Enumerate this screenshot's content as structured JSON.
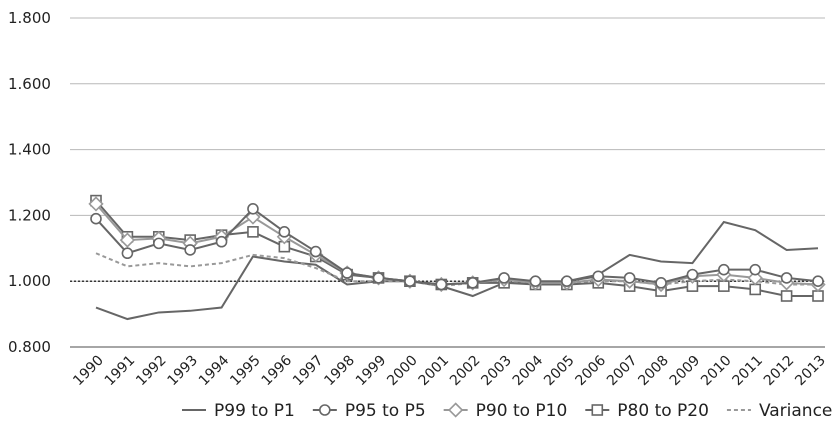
{
  "chart_data": {
    "type": "line",
    "title": "",
    "xlabel": "",
    "ylabel": "",
    "ylim": [
      0.8,
      1.8
    ],
    "yticks": [
      "0.800",
      "1.000",
      "1.200",
      "1.400",
      "1.600",
      "1.800"
    ],
    "grid": "horizontal",
    "reference_line": 1.0,
    "legend_position": "bottom",
    "x": [
      "1990",
      "1991",
      "1992",
      "1993",
      "1994",
      "1995",
      "1996",
      "1997",
      "1998",
      "1999",
      "2000",
      "2001",
      "2002",
      "2003",
      "2004",
      "2005",
      "2006",
      "2007",
      "2008",
      "2009",
      "2010",
      "2011",
      "2012",
      "2013"
    ],
    "series": [
      {
        "name": "P99 to P1",
        "style": "solid",
        "marker": "none",
        "color": "#666666",
        "values": [
          0.92,
          0.885,
          0.905,
          0.91,
          0.92,
          1.075,
          1.06,
          1.05,
          0.99,
          1.0,
          1.0,
          0.985,
          0.955,
          0.995,
          0.995,
          1.0,
          1.02,
          1.08,
          1.06,
          1.055,
          1.18,
          1.155,
          1.095,
          1.1
        ]
      },
      {
        "name": "P95 to P5",
        "style": "solid",
        "marker": "circle",
        "color": "#666666",
        "values": [
          1.19,
          1.085,
          1.115,
          1.095,
          1.12,
          1.22,
          1.15,
          1.09,
          1.025,
          1.01,
          1.0,
          0.99,
          0.995,
          1.01,
          1.0,
          1.0,
          1.015,
          1.01,
          0.995,
          1.02,
          1.035,
          1.035,
          1.01,
          1.0
        ]
      },
      {
        "name": "P90 to P10",
        "style": "solid",
        "marker": "diamond",
        "color": "#999999",
        "values": [
          1.235,
          1.125,
          1.13,
          1.115,
          1.135,
          1.195,
          1.135,
          1.08,
          1.025,
          1.01,
          1.0,
          0.99,
          0.995,
          1.005,
          0.995,
          0.995,
          1.005,
          1.0,
          0.99,
          1.015,
          1.02,
          1.01,
          0.995,
          0.99
        ]
      },
      {
        "name": "P80 to P20",
        "style": "solid",
        "marker": "square",
        "color": "#666666",
        "values": [
          1.245,
          1.135,
          1.135,
          1.125,
          1.14,
          1.15,
          1.105,
          1.075,
          1.02,
          1.01,
          1.0,
          0.99,
          0.995,
          0.995,
          0.99,
          0.99,
          0.995,
          0.985,
          0.97,
          0.985,
          0.985,
          0.975,
          0.955,
          0.955
        ]
      },
      {
        "name": "Variance",
        "style": "dashed",
        "marker": "none",
        "color": "#999999",
        "values": [
          1.085,
          1.045,
          1.055,
          1.045,
          1.055,
          1.08,
          1.07,
          1.04,
          1.0,
          1.0,
          1.0,
          0.985,
          0.995,
          1.0,
          0.995,
          0.995,
          1.0,
          1.0,
          0.99,
          1.0,
          1.005,
          1.0,
          0.99,
          0.99
        ]
      }
    ]
  }
}
